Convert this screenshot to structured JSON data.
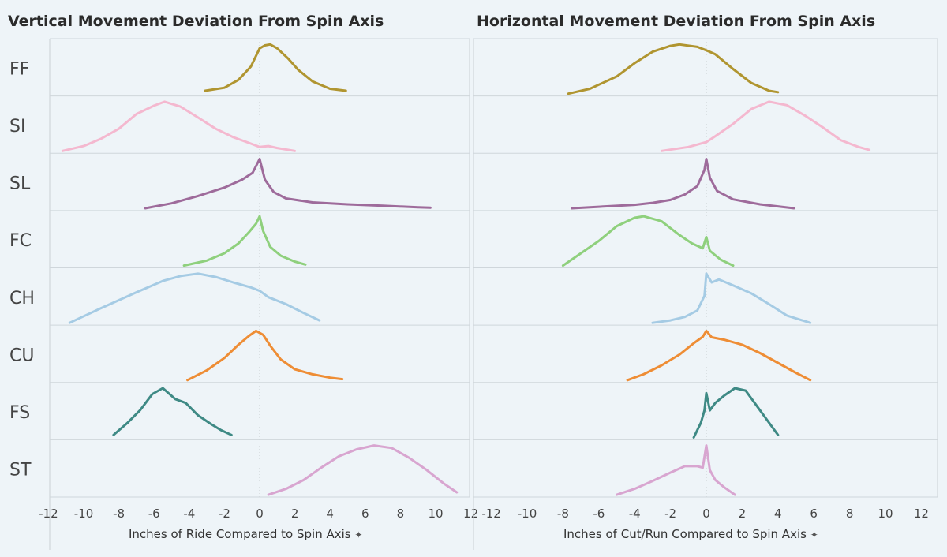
{
  "chart_data": [
    {
      "type": "line",
      "title": "Vertical Movement Deviation From Spin Axis",
      "xlabel": "Inches of Ride Compared to Spin Axis",
      "xlim": [
        -13.2,
        13.2
      ],
      "xticks": [
        -12,
        -10,
        -8,
        -6,
        -4,
        -2,
        0,
        2,
        4,
        6,
        8,
        10,
        12
      ],
      "row_labels": [
        "FF",
        "SI",
        "SL",
        "FC",
        "CH",
        "CU",
        "FS",
        "ST"
      ],
      "series": [
        {
          "name": "FF",
          "color": "#b09530",
          "points": [
            [
              -3.1,
              0.06
            ],
            [
              -2,
              0.12
            ],
            [
              -1.2,
              0.28
            ],
            [
              -0.5,
              0.55
            ],
            [
              0,
              0.92
            ],
            [
              0.3,
              0.98
            ],
            [
              0.6,
              1.0
            ],
            [
              1,
              0.92
            ],
            [
              1.6,
              0.72
            ],
            [
              2.2,
              0.48
            ],
            [
              3,
              0.25
            ],
            [
              4,
              0.1
            ],
            [
              4.9,
              0.06
            ]
          ]
        },
        {
          "name": "SI",
          "color": "#f4b8cf",
          "points": [
            [
              -11.2,
              0.0
            ],
            [
              -10,
              0.1
            ],
            [
              -9,
              0.25
            ],
            [
              -8,
              0.45
            ],
            [
              -7,
              0.75
            ],
            [
              -6,
              0.92
            ],
            [
              -5.4,
              1.0
            ],
            [
              -4.5,
              0.9
            ],
            [
              -3.5,
              0.68
            ],
            [
              -2.5,
              0.45
            ],
            [
              -1.5,
              0.28
            ],
            [
              -0.5,
              0.15
            ],
            [
              0,
              0.08
            ],
            [
              0.5,
              0.1
            ],
            [
              1,
              0.06
            ],
            [
              2,
              0.0
            ]
          ]
        },
        {
          "name": "SL",
          "color": "#9e6b9b",
          "points": [
            [
              -6.5,
              0.0
            ],
            [
              -5,
              0.1
            ],
            [
              -3.5,
              0.25
            ],
            [
              -2,
              0.42
            ],
            [
              -1,
              0.58
            ],
            [
              -0.4,
              0.72
            ],
            [
              0,
              1.0
            ],
            [
              0.3,
              0.58
            ],
            [
              0.8,
              0.33
            ],
            [
              1.5,
              0.2
            ],
            [
              3,
              0.12
            ],
            [
              5,
              0.08
            ],
            [
              7,
              0.05
            ],
            [
              9,
              0.02
            ],
            [
              9.7,
              0.01
            ]
          ]
        },
        {
          "name": "FC",
          "color": "#8fd07d",
          "points": [
            [
              -4.3,
              0.0
            ],
            [
              -3,
              0.1
            ],
            [
              -2,
              0.25
            ],
            [
              -1.2,
              0.45
            ],
            [
              -0.6,
              0.68
            ],
            [
              -0.2,
              0.85
            ],
            [
              0,
              1.0
            ],
            [
              0.2,
              0.7
            ],
            [
              0.6,
              0.38
            ],
            [
              1.2,
              0.2
            ],
            [
              2,
              0.08
            ],
            [
              2.6,
              0.02
            ]
          ]
        },
        {
          "name": "CH",
          "color": "#a5cbe4",
          "points": [
            [
              -10.8,
              0.0
            ],
            [
              -9,
              0.3
            ],
            [
              -7,
              0.62
            ],
            [
              -5.5,
              0.85
            ],
            [
              -4.5,
              0.95
            ],
            [
              -3.5,
              1.0
            ],
            [
              -2.5,
              0.93
            ],
            [
              -1.5,
              0.82
            ],
            [
              -0.5,
              0.72
            ],
            [
              0,
              0.65
            ],
            [
              0.5,
              0.52
            ],
            [
              1.5,
              0.38
            ],
            [
              2.5,
              0.2
            ],
            [
              3.4,
              0.05
            ]
          ]
        },
        {
          "name": "CU",
          "color": "#ee8d35",
          "points": [
            [
              -4.1,
              0.0
            ],
            [
              -3,
              0.2
            ],
            [
              -2,
              0.45
            ],
            [
              -1.2,
              0.72
            ],
            [
              -0.6,
              0.9
            ],
            [
              -0.2,
              1.0
            ],
            [
              0.2,
              0.92
            ],
            [
              0.6,
              0.7
            ],
            [
              1.2,
              0.42
            ],
            [
              2,
              0.22
            ],
            [
              3,
              0.12
            ],
            [
              4,
              0.05
            ],
            [
              4.7,
              0.02
            ]
          ]
        },
        {
          "name": "FS",
          "color": "#3f8a85",
          "points": [
            [
              -8.3,
              0.05
            ],
            [
              -7.5,
              0.3
            ],
            [
              -6.8,
              0.55
            ],
            [
              -6.1,
              0.88
            ],
            [
              -5.5,
              1.0
            ],
            [
              -4.8,
              0.78
            ],
            [
              -4.2,
              0.7
            ],
            [
              -3.5,
              0.45
            ],
            [
              -2.8,
              0.28
            ],
            [
              -2.2,
              0.15
            ],
            [
              -1.6,
              0.05
            ]
          ]
        },
        {
          "name": "ST",
          "color": "#d8a5d0",
          "points": [
            [
              0.5,
              0.0
            ],
            [
              1.5,
              0.12
            ],
            [
              2.5,
              0.3
            ],
            [
              3.5,
              0.55
            ],
            [
              4.5,
              0.78
            ],
            [
              5.5,
              0.92
            ],
            [
              6.5,
              1.0
            ],
            [
              7.5,
              0.95
            ],
            [
              8.5,
              0.75
            ],
            [
              9.5,
              0.5
            ],
            [
              10.5,
              0.22
            ],
            [
              11.2,
              0.05
            ]
          ]
        }
      ]
    },
    {
      "type": "line",
      "title": "Horizontal Movement Deviation From Spin Axis",
      "xlabel": "Inches of Cut/Run Compared to Spin Axis",
      "xlim": [
        -13.2,
        13.2
      ],
      "xticks": [
        -12,
        -10,
        -8,
        -6,
        -4,
        -2,
        0,
        2,
        4,
        6,
        8,
        10,
        12
      ],
      "row_labels": [
        "FF",
        "SI",
        "SL",
        "FC",
        "CH",
        "CU",
        "FS",
        "ST"
      ],
      "series": [
        {
          "name": "FF",
          "color": "#b09530",
          "points": [
            [
              -7.7,
              0.0
            ],
            [
              -6.5,
              0.1
            ],
            [
              -5,
              0.35
            ],
            [
              -4,
              0.62
            ],
            [
              -3,
              0.85
            ],
            [
              -2,
              0.97
            ],
            [
              -1.5,
              1.0
            ],
            [
              -0.5,
              0.95
            ],
            [
              0,
              0.88
            ],
            [
              0.5,
              0.8
            ],
            [
              1.5,
              0.5
            ],
            [
              2.5,
              0.22
            ],
            [
              3.5,
              0.06
            ],
            [
              4,
              0.03
            ]
          ]
        },
        {
          "name": "SI",
          "color": "#f4b8cf",
          "points": [
            [
              -2.5,
              0.0
            ],
            [
              -1,
              0.08
            ],
            [
              0,
              0.18
            ],
            [
              0.5,
              0.3
            ],
            [
              1.5,
              0.55
            ],
            [
              2.5,
              0.85
            ],
            [
              3.5,
              1.0
            ],
            [
              4.5,
              0.93
            ],
            [
              5.5,
              0.72
            ],
            [
              6.5,
              0.48
            ],
            [
              7.5,
              0.22
            ],
            [
              8.5,
              0.08
            ],
            [
              9.1,
              0.02
            ]
          ]
        },
        {
          "name": "SL",
          "color": "#9e6b9b",
          "points": [
            [
              -7.5,
              0.0
            ],
            [
              -6,
              0.03
            ],
            [
              -4,
              0.07
            ],
            [
              -3,
              0.11
            ],
            [
              -2,
              0.17
            ],
            [
              -1.2,
              0.28
            ],
            [
              -0.5,
              0.45
            ],
            [
              -0.1,
              0.78
            ],
            [
              0,
              1.0
            ],
            [
              0.2,
              0.62
            ],
            [
              0.6,
              0.35
            ],
            [
              1.5,
              0.18
            ],
            [
              3,
              0.08
            ],
            [
              4.9,
              0.0
            ]
          ]
        },
        {
          "name": "FC",
          "color": "#8fd07d",
          "points": [
            [
              -8,
              0.0
            ],
            [
              -7,
              0.25
            ],
            [
              -6,
              0.5
            ],
            [
              -5,
              0.8
            ],
            [
              -4,
              0.97
            ],
            [
              -3.5,
              1.0
            ],
            [
              -2.5,
              0.9
            ],
            [
              -1.5,
              0.62
            ],
            [
              -0.8,
              0.45
            ],
            [
              -0.2,
              0.35
            ],
            [
              0,
              0.58
            ],
            [
              0.2,
              0.3
            ],
            [
              0.8,
              0.12
            ],
            [
              1.5,
              0.0
            ]
          ]
        },
        {
          "name": "CH",
          "color": "#a5cbe4",
          "points": [
            [
              -3,
              0.0
            ],
            [
              -2,
              0.05
            ],
            [
              -1.2,
              0.12
            ],
            [
              -0.5,
              0.25
            ],
            [
              -0.1,
              0.55
            ],
            [
              0,
              1.0
            ],
            [
              0.3,
              0.82
            ],
            [
              0.7,
              0.88
            ],
            [
              1.5,
              0.76
            ],
            [
              2.5,
              0.6
            ],
            [
              3.5,
              0.38
            ],
            [
              4.5,
              0.15
            ],
            [
              5.8,
              0.0
            ]
          ]
        },
        {
          "name": "CU",
          "color": "#ee8d35",
          "points": [
            [
              -4.4,
              0.0
            ],
            [
              -3.5,
              0.12
            ],
            [
              -2.5,
              0.3
            ],
            [
              -1.5,
              0.52
            ],
            [
              -0.7,
              0.75
            ],
            [
              -0.2,
              0.88
            ],
            [
              0,
              1.0
            ],
            [
              0.3,
              0.87
            ],
            [
              1,
              0.82
            ],
            [
              2,
              0.72
            ],
            [
              3,
              0.55
            ],
            [
              4,
              0.35
            ],
            [
              5,
              0.15
            ],
            [
              5.8,
              0.0
            ]
          ]
        },
        {
          "name": "FS",
          "color": "#3f8a85",
          "points": [
            [
              -0.7,
              0.0
            ],
            [
              -0.3,
              0.3
            ],
            [
              -0.1,
              0.55
            ],
            [
              0,
              0.9
            ],
            [
              0.2,
              0.55
            ],
            [
              0.5,
              0.7
            ],
            [
              1,
              0.85
            ],
            [
              1.6,
              1.0
            ],
            [
              2.2,
              0.95
            ],
            [
              2.6,
              0.75
            ],
            [
              3,
              0.55
            ],
            [
              3.5,
              0.3
            ],
            [
              4,
              0.05
            ]
          ]
        },
        {
          "name": "ST",
          "color": "#d8a5d0",
          "points": [
            [
              -5,
              0.0
            ],
            [
              -4,
              0.12
            ],
            [
              -3,
              0.28
            ],
            [
              -2,
              0.45
            ],
            [
              -1.2,
              0.58
            ],
            [
              -0.5,
              0.58
            ],
            [
              -0.2,
              0.55
            ],
            [
              0,
              1.0
            ],
            [
              0.2,
              0.5
            ],
            [
              0.5,
              0.3
            ],
            [
              1,
              0.15
            ],
            [
              1.6,
              0.0
            ]
          ]
        }
      ]
    }
  ]
}
